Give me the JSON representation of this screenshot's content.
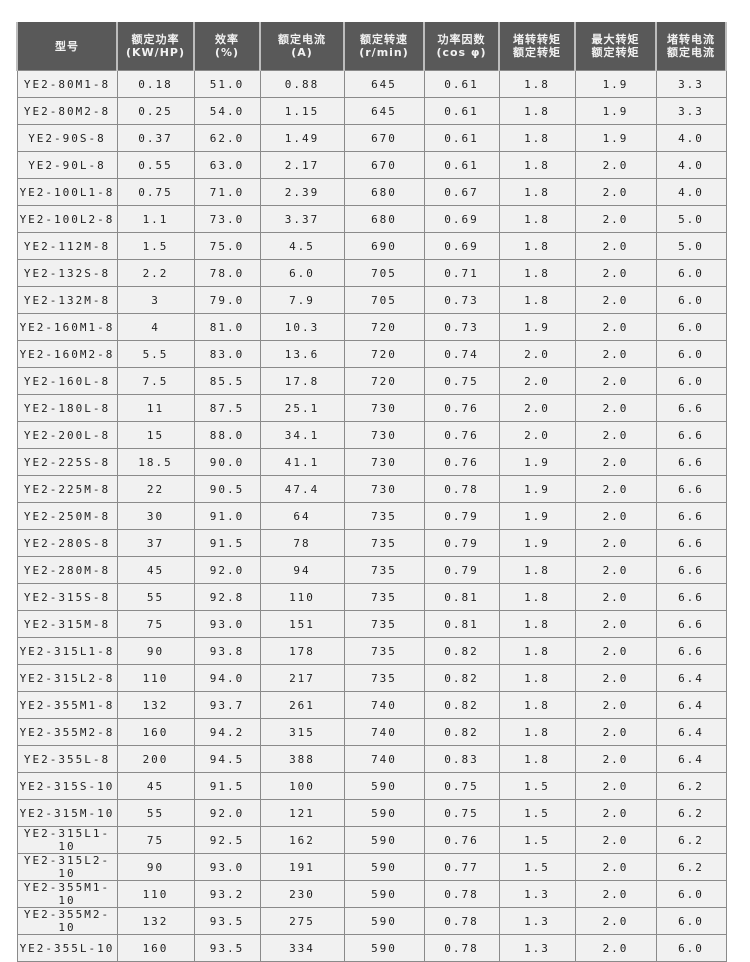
{
  "headers": [
    [
      "型号",
      ""
    ],
    [
      "额定功率",
      "(KW/HP)"
    ],
    [
      "效率",
      "(%)"
    ],
    [
      "额定电流",
      "(A)"
    ],
    [
      "额定转速",
      "(r/min)"
    ],
    [
      "功率因数",
      "(cos φ)"
    ],
    [
      "堵转转矩",
      "额定转矩"
    ],
    [
      "最大转矩",
      "额定转矩"
    ],
    [
      "堵转电流",
      "额定电流"
    ]
  ],
  "rows": [
    [
      "YE2-80M1-8",
      "0.18",
      "51.0",
      "0.88",
      "645",
      "0.61",
      "1.8",
      "1.9",
      "3.3"
    ],
    [
      "YE2-80M2-8",
      "0.25",
      "54.0",
      "1.15",
      "645",
      "0.61",
      "1.8",
      "1.9",
      "3.3"
    ],
    [
      "YE2-90S-8",
      "0.37",
      "62.0",
      "1.49",
      "670",
      "0.61",
      "1.8",
      "1.9",
      "4.0"
    ],
    [
      "YE2-90L-8",
      "0.55",
      "63.0",
      "2.17",
      "670",
      "0.61",
      "1.8",
      "2.0",
      "4.0"
    ],
    [
      "YE2-100L1-8",
      "0.75",
      "71.0",
      "2.39",
      "680",
      "0.67",
      "1.8",
      "2.0",
      "4.0"
    ],
    [
      "YE2-100L2-8",
      "1.1",
      "73.0",
      "3.37",
      "680",
      "0.69",
      "1.8",
      "2.0",
      "5.0"
    ],
    [
      "YE2-112M-8",
      "1.5",
      "75.0",
      "4.5",
      "690",
      "0.69",
      "1.8",
      "2.0",
      "5.0"
    ],
    [
      "YE2-132S-8",
      "2.2",
      "78.0",
      "6.0",
      "705",
      "0.71",
      "1.8",
      "2.0",
      "6.0"
    ],
    [
      "YE2-132M-8",
      "3",
      "79.0",
      "7.9",
      "705",
      "0.73",
      "1.8",
      "2.0",
      "6.0"
    ],
    [
      "YE2-160M1-8",
      "4",
      "81.0",
      "10.3",
      "720",
      "0.73",
      "1.9",
      "2.0",
      "6.0"
    ],
    [
      "YE2-160M2-8",
      "5.5",
      "83.0",
      "13.6",
      "720",
      "0.74",
      "2.0",
      "2.0",
      "6.0"
    ],
    [
      "YE2-160L-8",
      "7.5",
      "85.5",
      "17.8",
      "720",
      "0.75",
      "2.0",
      "2.0",
      "6.0"
    ],
    [
      "YE2-180L-8",
      "11",
      "87.5",
      "25.1",
      "730",
      "0.76",
      "2.0",
      "2.0",
      "6.6"
    ],
    [
      "YE2-200L-8",
      "15",
      "88.0",
      "34.1",
      "730",
      "0.76",
      "2.0",
      "2.0",
      "6.6"
    ],
    [
      "YE2-225S-8",
      "18.5",
      "90.0",
      "41.1",
      "730",
      "0.76",
      "1.9",
      "2.0",
      "6.6"
    ],
    [
      "YE2-225M-8",
      "22",
      "90.5",
      "47.4",
      "730",
      "0.78",
      "1.9",
      "2.0",
      "6.6"
    ],
    [
      "YE2-250M-8",
      "30",
      "91.0",
      "64",
      "735",
      "0.79",
      "1.9",
      "2.0",
      "6.6"
    ],
    [
      "YE2-280S-8",
      "37",
      "91.5",
      "78",
      "735",
      "0.79",
      "1.9",
      "2.0",
      "6.6"
    ],
    [
      "YE2-280M-8",
      "45",
      "92.0",
      "94",
      "735",
      "0.79",
      "1.8",
      "2.0",
      "6.6"
    ],
    [
      "YE2-315S-8",
      "55",
      "92.8",
      "110",
      "735",
      "0.81",
      "1.8",
      "2.0",
      "6.6"
    ],
    [
      "YE2-315M-8",
      "75",
      "93.0",
      "151",
      "735",
      "0.81",
      "1.8",
      "2.0",
      "6.6"
    ],
    [
      "YE2-315L1-8",
      "90",
      "93.8",
      "178",
      "735",
      "0.82",
      "1.8",
      "2.0",
      "6.6"
    ],
    [
      "YE2-315L2-8",
      "110",
      "94.0",
      "217",
      "735",
      "0.82",
      "1.8",
      "2.0",
      "6.4"
    ],
    [
      "YE2-355M1-8",
      "132",
      "93.7",
      "261",
      "740",
      "0.82",
      "1.8",
      "2.0",
      "6.4"
    ],
    [
      "YE2-355M2-8",
      "160",
      "94.2",
      "315",
      "740",
      "0.82",
      "1.8",
      "2.0",
      "6.4"
    ],
    [
      "YE2-355L-8",
      "200",
      "94.5",
      "388",
      "740",
      "0.83",
      "1.8",
      "2.0",
      "6.4"
    ],
    [
      "YE2-315S-10",
      "45",
      "91.5",
      "100",
      "590",
      "0.75",
      "1.5",
      "2.0",
      "6.2"
    ],
    [
      "YE2-315M-10",
      "55",
      "92.0",
      "121",
      "590",
      "0.75",
      "1.5",
      "2.0",
      "6.2"
    ],
    [
      "YE2-315L1-10",
      "75",
      "92.5",
      "162",
      "590",
      "0.76",
      "1.5",
      "2.0",
      "6.2"
    ],
    [
      "YE2-315L2-10",
      "90",
      "93.0",
      "191",
      "590",
      "0.77",
      "1.5",
      "2.0",
      "6.2"
    ],
    [
      "YE2-355M1-10",
      "110",
      "93.2",
      "230",
      "590",
      "0.78",
      "1.3",
      "2.0",
      "6.0"
    ],
    [
      "YE2-355M2-10",
      "132",
      "93.5",
      "275",
      "590",
      "0.78",
      "1.3",
      "2.0",
      "6.0"
    ],
    [
      "YE2-355L-10",
      "160",
      "93.5",
      "334",
      "590",
      "0.78",
      "1.3",
      "2.0",
      "6.0"
    ]
  ]
}
